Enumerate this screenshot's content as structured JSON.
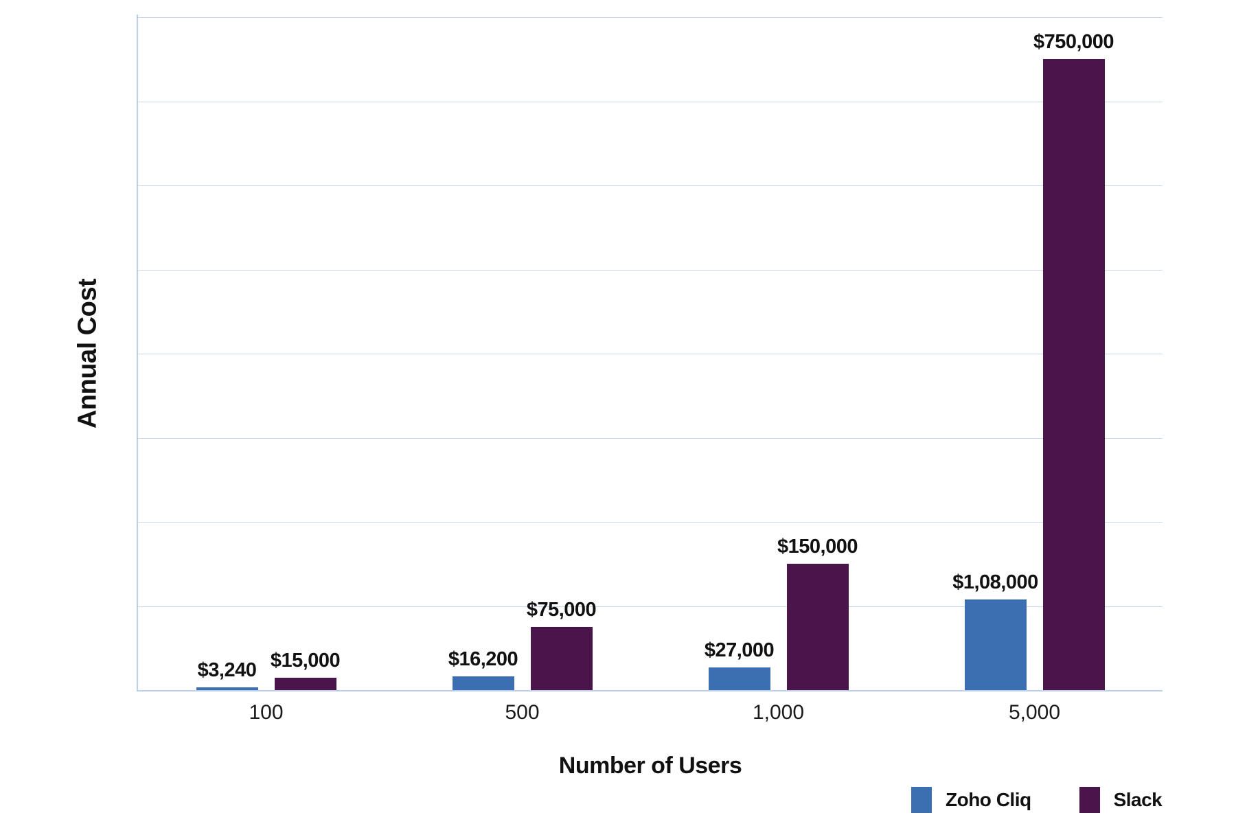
{
  "chart_data": {
    "type": "bar",
    "title": "",
    "xlabel": "Number of Users",
    "ylabel": "Annual Cost",
    "categories": [
      "100",
      "500",
      "1,000",
      "5,000"
    ],
    "series": [
      {
        "name": "Zoho Cliq",
        "color": "#3B6FB2",
        "values": [
          3240,
          16200,
          27000,
          108000
        ],
        "labels": [
          "$3,240",
          "$16,200",
          "$27,000",
          "$1,08,000"
        ]
      },
      {
        "name": "Slack",
        "color": "#4A154B",
        "values": [
          15000,
          75000,
          150000,
          750000
        ],
        "labels": [
          "$15,000",
          "$75,000",
          "$150,000",
          "$750,000"
        ]
      }
    ],
    "ylim": [
      0,
      800000
    ],
    "grid": true,
    "gridline_interval": 100000,
    "gridline_color": "#C9D9F1",
    "axis_line_color": "#BBCFED",
    "label_color": "#111111",
    "legend_position": "bottom-right"
  }
}
